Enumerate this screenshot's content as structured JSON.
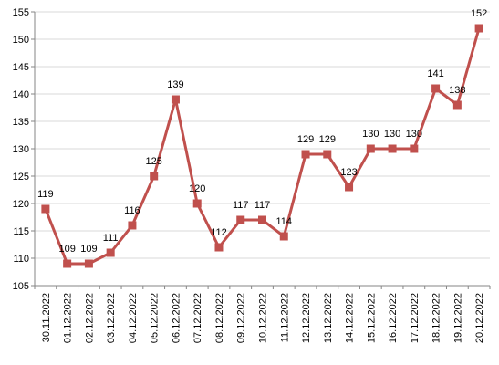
{
  "chart_data": {
    "type": "line",
    "categories": [
      "30.11.2022",
      "01.12.2022",
      "02.12.2022",
      "03.12.2022",
      "04.12.2022",
      "05.12.2022",
      "06.12.2022",
      "07.12.2022",
      "08.12.2022",
      "09.12.2022",
      "10.12.2022",
      "11.12.2022",
      "12.12.2022",
      "13.12.2022",
      "14.12.2022",
      "15.12.2022",
      "16.12.2022",
      "17.12.2022",
      "18.12.2022",
      "19.12.2022",
      "20.12.2022"
    ],
    "series": [
      {
        "values": [
          119,
          109,
          109,
          111,
          116,
          125,
          139,
          120,
          112,
          117,
          117,
          114,
          129,
          129,
          123,
          130,
          130,
          130,
          141,
          138,
          152
        ],
        "labels": [
          "119",
          "109",
          "109",
          "111",
          "116",
          "125",
          "139",
          "120",
          "112",
          "117",
          "117",
          "114",
          "129",
          "129",
          "123",
          "130",
          "130",
          "130",
          "141",
          "138",
          "152"
        ]
      }
    ],
    "y_ticks": [
      "105",
      "110",
      "115",
      "120",
      "125",
      "130",
      "135",
      "140",
      "145",
      "150",
      "155"
    ],
    "ylim": [
      105,
      155
    ],
    "grid": true,
    "legend": "none",
    "colors": {
      "series": "#c0504d",
      "grid": "#d9d9d9",
      "axis": "#868686"
    },
    "marker": "square-icon"
  }
}
